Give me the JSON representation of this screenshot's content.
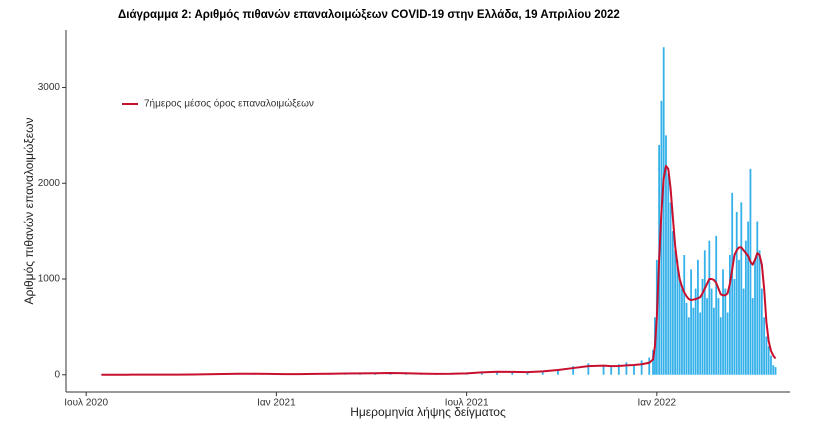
{
  "chart_data": {
    "type": "bar",
    "title": "Διάγραμμα 2: Αριθμός πιθανών επαναλοιμώξεων COVID-19 στην Ελλάδα, 19 Απριλίου 2022",
    "x_label": "Ημερομηνία λήψης δείγματος",
    "y_label": "Αριθμός πιθανών επαναλοιμώξεων",
    "legend": "top-left",
    "grid": false,
    "xlim": [
      2020.447,
      2022.35
    ],
    "ylim": [
      -180,
      3600
    ],
    "xticks": [
      {
        "value": 2020.5,
        "label": "Ιουλ 2020"
      },
      {
        "value": 2021.0,
        "label": "Ιαν 2021"
      },
      {
        "value": 2021.5,
        "label": "Ιουλ 2021"
      },
      {
        "value": 2022.0,
        "label": "Ιαν 2022"
      }
    ],
    "yticks": [
      0,
      1000,
      2000,
      3000
    ],
    "x": [
      2020.54,
      2020.58,
      2020.62,
      2020.66,
      2020.7,
      2020.74,
      2020.78,
      2020.82,
      2020.86,
      2020.9,
      2020.94,
      2020.98,
      2021.02,
      2021.06,
      2021.1,
      2021.14,
      2021.18,
      2021.22,
      2021.26,
      2021.3,
      2021.34,
      2021.38,
      2021.42,
      2021.46,
      2021.5,
      2021.54,
      2021.58,
      2021.62,
      2021.66,
      2021.7,
      2021.74,
      2021.78,
      2021.82,
      2021.86,
      2021.88,
      2021.9,
      2021.92,
      2021.94,
      2021.96,
      2021.98,
      2021.99,
      2021.995,
      2022.0,
      2022.006,
      2022.012,
      2022.018,
      2022.024,
      2022.03,
      2022.036,
      2022.042,
      2022.048,
      2022.054,
      2022.06,
      2022.066,
      2022.072,
      2022.078,
      2022.084,
      2022.09,
      2022.096,
      2022.102,
      2022.108,
      2022.114,
      2022.12,
      2022.126,
      2022.132,
      2022.138,
      2022.144,
      2022.15,
      2022.156,
      2022.162,
      2022.168,
      2022.174,
      2022.18,
      2022.186,
      2022.192,
      2022.198,
      2022.204,
      2022.21,
      2022.216,
      2022.222,
      2022.228,
      2022.234,
      2022.24,
      2022.246,
      2022.252,
      2022.258,
      2022.264,
      2022.27,
      2022.276,
      2022.282,
      2022.288,
      2022.294,
      2022.3,
      2022.306,
      2022.312
    ],
    "series": [
      {
        "type": "bar",
        "color": "#35b1ea",
        "values": [
          0,
          1,
          0,
          2,
          1,
          3,
          5,
          8,
          10,
          12,
          10,
          8,
          6,
          8,
          10,
          12,
          15,
          14,
          18,
          20,
          15,
          10,
          8,
          12,
          20,
          30,
          35,
          25,
          30,
          40,
          60,
          90,
          120,
          100,
          80,
          110,
          130,
          100,
          150,
          180,
          260,
          600,
          1200,
          2400,
          2860,
          3420,
          2500,
          2100,
          1800,
          1500,
          1300,
          1200,
          1000,
          900,
          1250,
          750,
          600,
          1100,
          700,
          900,
          1200,
          650,
          1000,
          1300,
          800,
          1400,
          900,
          700,
          1450,
          800,
          600,
          1100,
          900,
          650,
          1250,
          1900,
          1000,
          1700,
          1200,
          1800,
          900,
          1400,
          1600,
          2150,
          800,
          1200,
          1600,
          1300,
          900,
          600,
          400,
          300,
          200,
          100,
          80
        ]
      },
      {
        "type": "line",
        "name": "7ήμερος μέσος όρος επαναλοιμώξεων",
        "color": "#c8102e",
        "values": [
          0,
          0,
          1,
          1,
          1,
          2,
          3,
          5,
          8,
          10,
          11,
          9,
          7,
          7,
          9,
          11,
          13,
          14,
          16,
          18,
          16,
          12,
          9,
          10,
          15,
          25,
          32,
          30,
          28,
          35,
          50,
          70,
          90,
          95,
          90,
          92,
          98,
          102,
          110,
          125,
          160,
          300,
          600,
          1200,
          1700,
          2050,
          2180,
          2150,
          1950,
          1650,
          1350,
          1150,
          1000,
          920,
          860,
          820,
          790,
          780,
          785,
          790,
          800,
          810,
          850,
          900,
          950,
          1000,
          1000,
          990,
          960,
          900,
          840,
          830,
          830,
          850,
          950,
          1100,
          1250,
          1300,
          1330,
          1330,
          1300,
          1270,
          1240,
          1180,
          1150,
          1200,
          1270,
          1250,
          1150,
          900,
          550,
          350,
          250,
          200,
          170
        ]
      }
    ]
  }
}
